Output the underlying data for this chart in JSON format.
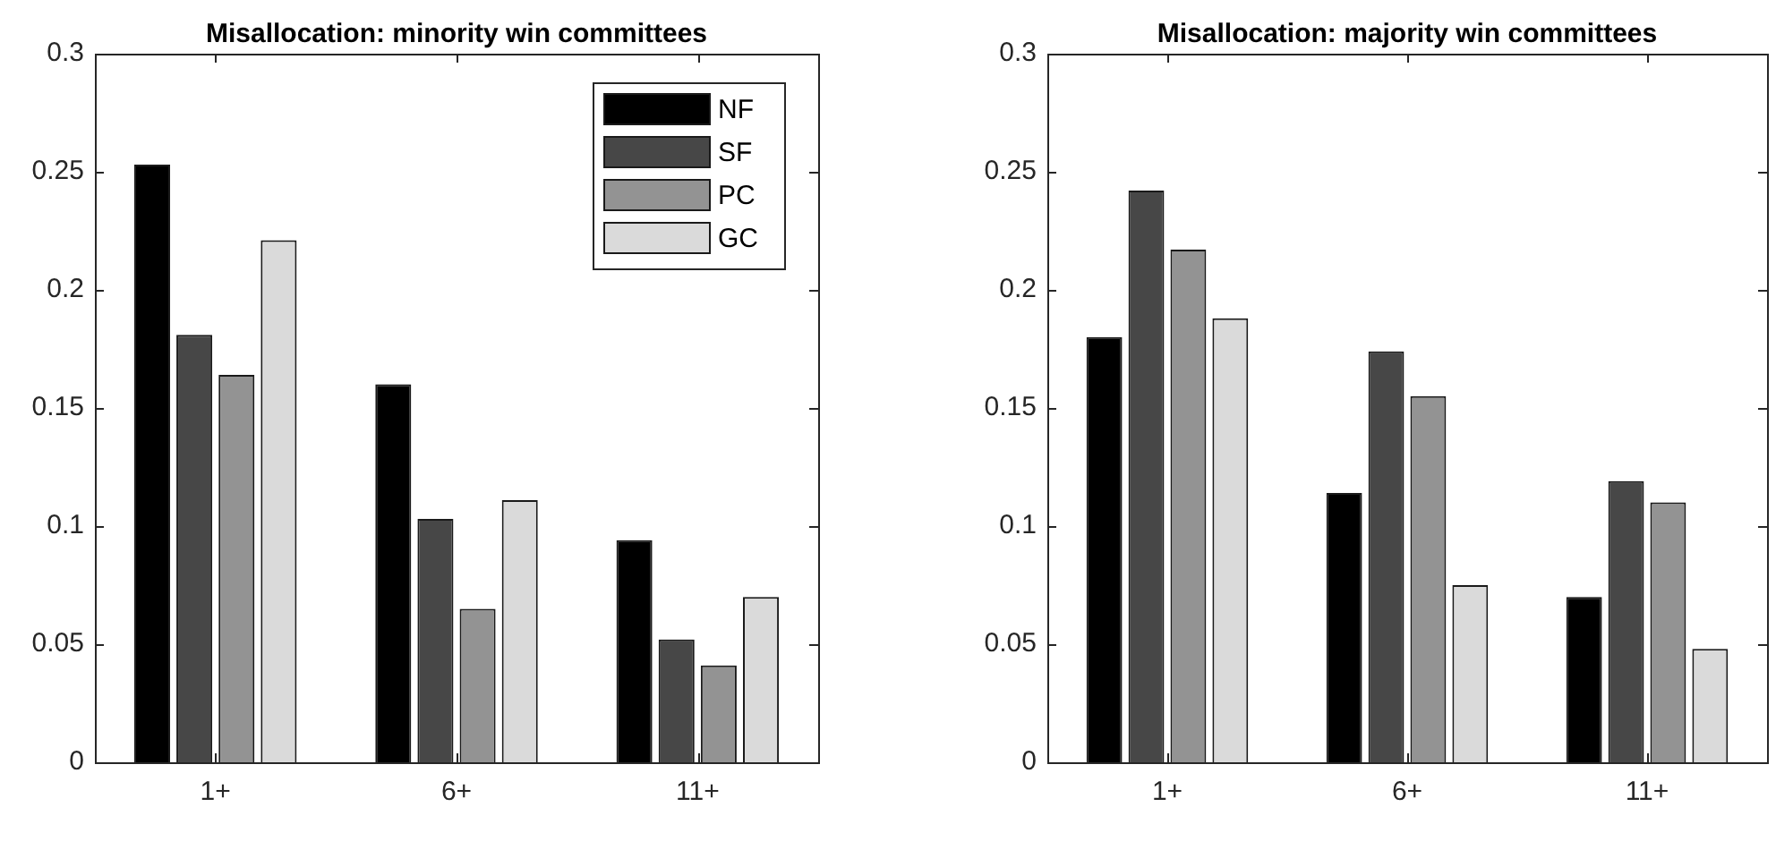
{
  "chart_data": [
    {
      "type": "bar",
      "title": "Misallocation: minority win committees",
      "categories": [
        "1+",
        "6+",
        "11+"
      ],
      "series": [
        {
          "name": "NF",
          "color": "#000000",
          "values": [
            0.253,
            0.16,
            0.094
          ]
        },
        {
          "name": "SF",
          "color": "#474747",
          "values": [
            0.181,
            0.103,
            0.052
          ]
        },
        {
          "name": "PC",
          "color": "#939393",
          "values": [
            0.164,
            0.065,
            0.041
          ]
        },
        {
          "name": "GC",
          "color": "#dadada",
          "values": [
            0.221,
            0.111,
            0.07
          ]
        }
      ],
      "ylim": [
        0,
        0.3
      ],
      "yticks": [
        0,
        0.05,
        0.1,
        0.15,
        0.2,
        0.25,
        0.3
      ],
      "grid": false,
      "legend": "top right"
    },
    {
      "type": "bar",
      "title": "Misallocation: majority win committees",
      "categories": [
        "1+",
        "6+",
        "11+"
      ],
      "series": [
        {
          "color": "#000000",
          "values": [
            0.18,
            0.114,
            0.07
          ]
        },
        {
          "color": "#474747",
          "values": [
            0.242,
            0.174,
            0.119
          ]
        },
        {
          "color": "#939393",
          "values": [
            0.217,
            0.155,
            0.11
          ]
        },
        {
          "color": "#dadada",
          "values": [
            0.188,
            0.075,
            0.048
          ]
        }
      ],
      "ylim": [
        0,
        0.3
      ],
      "yticks": [
        0,
        0.05,
        0.1,
        0.15,
        0.2,
        0.25,
        0.3
      ],
      "grid": false
    }
  ]
}
